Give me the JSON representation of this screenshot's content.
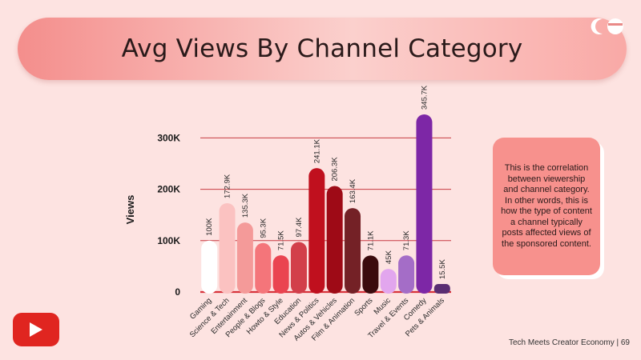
{
  "title": "Avg Views By Channel Category",
  "note": "This is the correlation between viewership and channel category. In other words, this is how the type of content a channel typically posts affected views of the sponsored content.",
  "footer": "Tech Meets Creator Economy | 69",
  "icons": {
    "logo": "brand-logo-icon",
    "youtube": "youtube-play-icon"
  },
  "colors": {
    "background": "#fde3e1",
    "gridline": "#c73b42",
    "note_box": "#f7918d",
    "youtube": "#e02520"
  },
  "chart_data": {
    "type": "bar",
    "title": "Avg Views By Channel Category",
    "xlabel": "",
    "ylabel": "Views",
    "ylim": [
      0,
      345700
    ],
    "yticks": [
      0,
      100000,
      200000,
      300000
    ],
    "ytick_labels": [
      "0",
      "100K",
      "200K",
      "300K"
    ],
    "grid": true,
    "categories": [
      "Gaming",
      "Science & Tech",
      "Entertainment",
      "People & Blogs",
      "Howto & Style",
      "Education",
      "News & Politics",
      "Autos & Vehicles",
      "Film & Animation",
      "Sports",
      "Music",
      "Travel & Events",
      "Comedy",
      "Pets & Animals"
    ],
    "values": [
      100000,
      172900,
      135300,
      95300,
      71500,
      97400,
      241100,
      206300,
      163400,
      71100,
      45000,
      71300,
      345700,
      15500
    ],
    "value_labels": [
      "100K",
      "172.9K",
      "135.3K",
      "95.3K",
      "71.5K",
      "97.4K",
      "241.1K",
      "206.3K",
      "163.4K",
      "71.1K",
      "45K",
      "71.3K",
      "345.7K",
      "15.5K"
    ],
    "bar_colors": [
      "#ffffff",
      "#fbc2c1",
      "#f49a99",
      "#f4757a",
      "#ea4450",
      "#d23f4a",
      "#c0101e",
      "#9e0a16",
      "#742126",
      "#3b0b0d",
      "#e2a6ee",
      "#a46dc7",
      "#7d27a6",
      "#5a2d72"
    ]
  }
}
